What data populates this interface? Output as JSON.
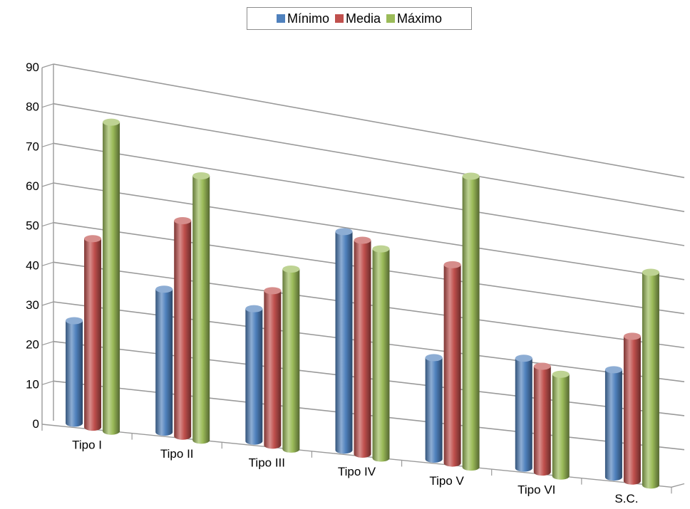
{
  "chart_data": {
    "type": "bar",
    "title": "",
    "xlabel": "",
    "ylabel": "",
    "ylim": [
      0,
      90
    ],
    "yticks": [
      0,
      10,
      20,
      30,
      40,
      50,
      60,
      70,
      80,
      90
    ],
    "grid": true,
    "legend_position": "top-center",
    "categories": [
      "Tipo I",
      "Tipo II",
      "Tipo III",
      "Tipo IV",
      "Tipo V",
      "Tipo VI",
      "S.C."
    ],
    "series": [
      {
        "name": "Mínimo",
        "color": "#4F81BD",
        "values": [
          26,
          37,
          35,
          59,
          28,
          31,
          31
        ]
      },
      {
        "name": "Media",
        "color": "#C0504D",
        "values": [
          48,
          56,
          41,
          58,
          55,
          30,
          42
        ]
      },
      {
        "name": "Máximo",
        "color": "#9BBB59",
        "values": [
          79,
          69,
          48,
          57,
          81,
          29,
          62
        ]
      }
    ]
  }
}
